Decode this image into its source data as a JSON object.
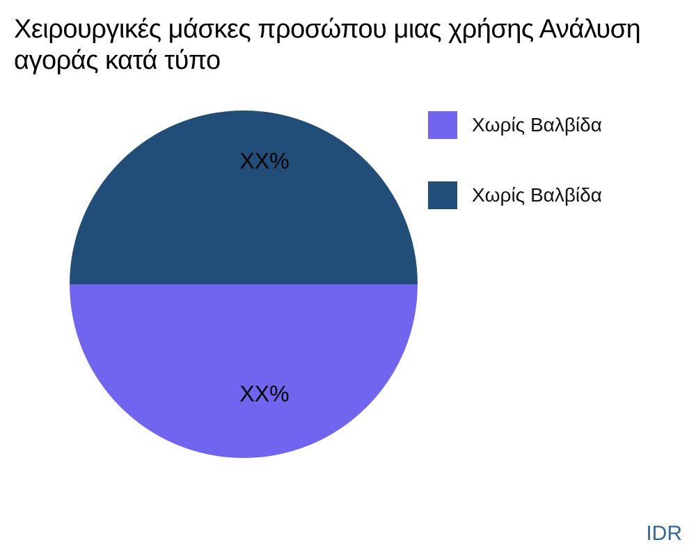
{
  "title": "Χειρουργικές μάσκες προσώπου μιας χρήσης Ανάλυση\nαγοράς κατά τύπο",
  "watermark": "IDR",
  "colors": {
    "background": "#FFFFFF",
    "title_text": "#000000",
    "slice_label_text": "#000000",
    "watermark_text": "#31689B",
    "slice1": "#7164EE",
    "slice2": "#204E78"
  },
  "chart_data": {
    "type": "pie",
    "title": "Χειρουργικές μάσκες προσώπου μιας χρήσης Ανάλυση αγοράς κατά τύπο",
    "slices": [
      {
        "label": "Χωρίς Βαλβίδα",
        "value": 50,
        "display_value": "XX%",
        "color": "#7164EE"
      },
      {
        "label": "Χωρίς Βαλβίδα",
        "value": 50,
        "display_value": "XX%",
        "color": "#204E78"
      }
    ],
    "start_angle": 180,
    "counterclockwise": true,
    "label_distance": 0.67,
    "legend_position": "right",
    "legend_entries": [
      "Χωρίς Βαλβίδα",
      "Χωρίς Βαλβίδα"
    ]
  }
}
